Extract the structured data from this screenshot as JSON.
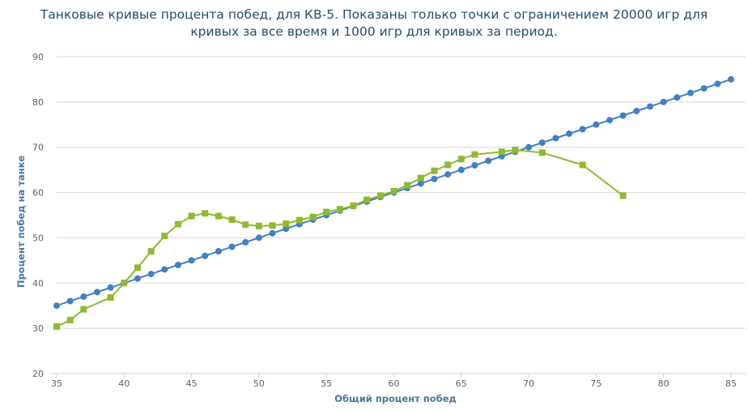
{
  "chart_data": {
    "type": "line",
    "title": "Танковые кривые процента побед, для КВ-5. Показаны только точки с ограничением 20000 игр для кривых за все время и 1000 игр для кривых за период.",
    "xlabel": "Общий процент побед",
    "ylabel": "Процент побед на танке",
    "xlim": [
      35,
      85
    ],
    "ylim": [
      20,
      90
    ],
    "x_ticks": [
      35,
      40,
      45,
      50,
      55,
      60,
      65,
      70,
      75,
      80,
      85
    ],
    "y_ticks": [
      20,
      30,
      40,
      50,
      60,
      70,
      80,
      90
    ],
    "grid": true,
    "series": [
      {
        "name": "blue-series",
        "color": "#4080c4",
        "marker": "circle",
        "x": [
          35,
          36,
          37,
          38,
          39,
          40,
          41,
          42,
          43,
          44,
          45,
          46,
          47,
          48,
          49,
          50,
          51,
          52,
          53,
          54,
          55,
          56,
          57,
          58,
          59,
          60,
          61,
          62,
          63,
          64,
          65,
          66,
          67,
          68,
          69,
          70,
          71,
          72,
          73,
          74,
          75,
          76,
          77,
          78,
          79,
          80,
          81,
          82,
          83,
          84,
          85
        ],
        "values": [
          35,
          36,
          37,
          38,
          39,
          40,
          41,
          42,
          43,
          44,
          45,
          46,
          47,
          48,
          49,
          50,
          51,
          52,
          53,
          54,
          55,
          56,
          57,
          58,
          59,
          60,
          61,
          62,
          63,
          64,
          65,
          66,
          67,
          68,
          69,
          70,
          71,
          72,
          73,
          74,
          75,
          76,
          77,
          78,
          79,
          80,
          81,
          82,
          83,
          84,
          85
        ]
      },
      {
        "name": "green-series",
        "color": "#8dba30",
        "marker": "square",
        "x": [
          35,
          36,
          37,
          39,
          40,
          41,
          42,
          43,
          44,
          45,
          46,
          47,
          48,
          49,
          50,
          51,
          52,
          53,
          54,
          55,
          56,
          57,
          58,
          59,
          60,
          61,
          62,
          63,
          64,
          65,
          66,
          68,
          69,
          71,
          74,
          77
        ],
        "values": [
          30.4,
          31.8,
          34.2,
          36.8,
          40.0,
          43.4,
          47.0,
          50.4,
          53.0,
          54.8,
          55.4,
          54.8,
          54.0,
          52.9,
          52.6,
          52.7,
          53.1,
          53.9,
          54.6,
          55.7,
          56.3,
          57.1,
          58.4,
          59.3,
          60.3,
          61.6,
          63.2,
          64.8,
          66.1,
          67.4,
          68.4,
          69.0,
          69.4,
          68.8,
          66.1,
          59.3
        ]
      }
    ]
  }
}
